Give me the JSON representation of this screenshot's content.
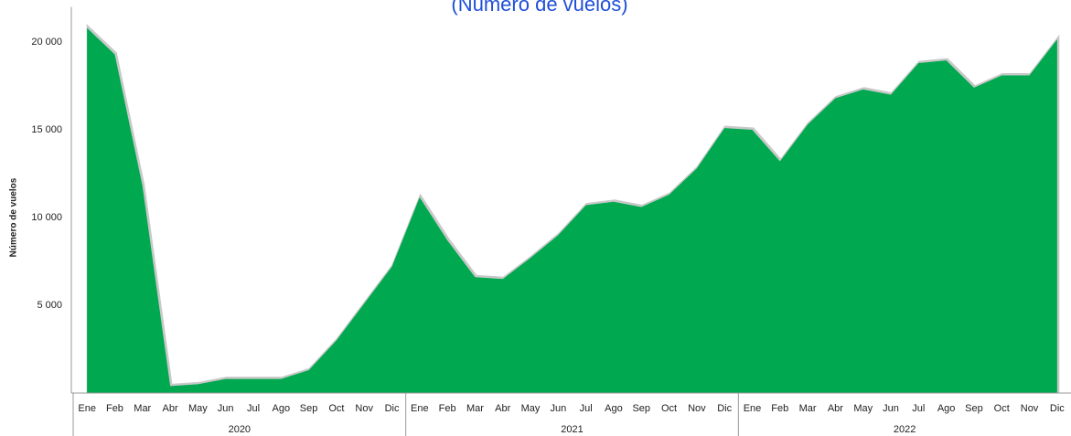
{
  "chart_data": {
    "type": "area",
    "title": "(Número de vuelos)",
    "y_label": "Número de vuelos",
    "categories": [
      "Ene",
      "Feb",
      "Mar",
      "Abr",
      "May",
      "Jun",
      "Jul",
      "Ago",
      "Sep",
      "Oct",
      "Nov",
      "Dic",
      "Ene",
      "Feb",
      "Mar",
      "Abr",
      "May",
      "Jun",
      "Jul",
      "Ago",
      "Sep",
      "Oct",
      "Nov",
      "Dic",
      "Ene",
      "Feb",
      "Mar",
      "Abr",
      "May",
      "Jun",
      "Jul",
      "Ago",
      "Sep",
      "Oct",
      "Nov",
      "Dic"
    ],
    "groups": [
      "2020",
      "2021",
      "2022"
    ],
    "values": [
      20800,
      19300,
      11800,
      400,
      500,
      800,
      800,
      800,
      1300,
      3000,
      5100,
      7200,
      11150,
      8700,
      6600,
      6500,
      7700,
      9000,
      10700,
      10900,
      10600,
      11300,
      12800,
      15100,
      15000,
      13200,
      15300,
      16800,
      17300,
      17000,
      18800,
      18950,
      17400,
      18100,
      18100,
      20150
    ],
    "color": "#00a84f",
    "ylim": [
      0,
      22000
    ],
    "yticks": [
      {
        "value": 5000,
        "label": "5 000"
      },
      {
        "value": 10000,
        "label": "10 000"
      },
      {
        "value": 15000,
        "label": "15 000"
      },
      {
        "value": 20000,
        "label": "20 000"
      }
    ],
    "grid": false
  }
}
